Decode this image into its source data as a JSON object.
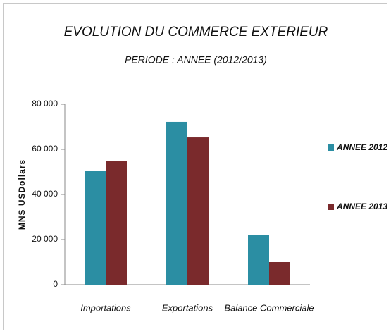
{
  "chart_data": {
    "type": "bar",
    "title": "EVOLUTION DU COMMERCE EXTERIEUR",
    "subtitle": "PERIODE : ANNEE (2012/2013)",
    "y_label": "MNS USDollars",
    "categories": [
      "Importations",
      "Exportations",
      "Balance Commerciale"
    ],
    "series": [
      {
        "name": "ANNEE 2012",
        "color": "#2b8ea3",
        "values": [
          50600,
          72200,
          21900
        ]
      },
      {
        "name": "ANNEE 2013",
        "color": "#7a2a2c",
        "values": [
          55000,
          65300,
          10000
        ]
      }
    ],
    "ylim": [
      0,
      80000
    ],
    "yticks": [
      {
        "value": 0,
        "label": "0"
      },
      {
        "value": 20000,
        "label": "20 000"
      },
      {
        "value": 40000,
        "label": "40 000"
      },
      {
        "value": 60000,
        "label": "60 000"
      },
      {
        "value": 80000,
        "label": "80 000"
      }
    ],
    "legend": "right"
  }
}
